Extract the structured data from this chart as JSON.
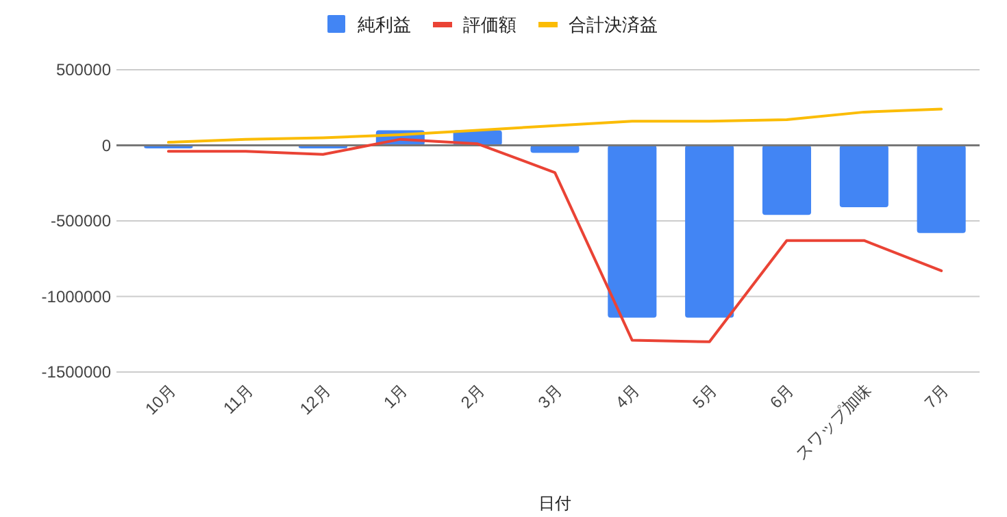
{
  "chart_data": {
    "type": "bar",
    "xlabel": "日付",
    "categories": [
      "10月",
      "11月",
      "12月",
      "1月",
      "2月",
      "3月",
      "4月",
      "5月",
      "6月",
      "スワップ加味",
      "7月"
    ],
    "series": [
      {
        "name": "純利益",
        "color": "#4285f4",
        "values": [
          -20000,
          null,
          -20000,
          100000,
          100000,
          -50000,
          -1140000,
          -1140000,
          -460000,
          -410000,
          -580000
        ]
      },
      {
        "name": "評価額",
        "type": "line",
        "color": "#ea4335",
        "values": [
          -40000,
          -40000,
          -60000,
          40000,
          10000,
          -180000,
          -1290000,
          -1300000,
          -630000,
          -630000,
          -830000
        ]
      },
      {
        "name": "合計決済益",
        "type": "line",
        "color": "#fbbc04",
        "values": [
          20000,
          40000,
          50000,
          70000,
          100000,
          130000,
          160000,
          160000,
          170000,
          220000,
          240000
        ]
      }
    ],
    "ylim": [
      -1500000,
      500000
    ],
    "yticks": [
      -1500000,
      -1000000,
      -500000,
      0,
      500000
    ],
    "grid": "y",
    "legend": "top"
  }
}
